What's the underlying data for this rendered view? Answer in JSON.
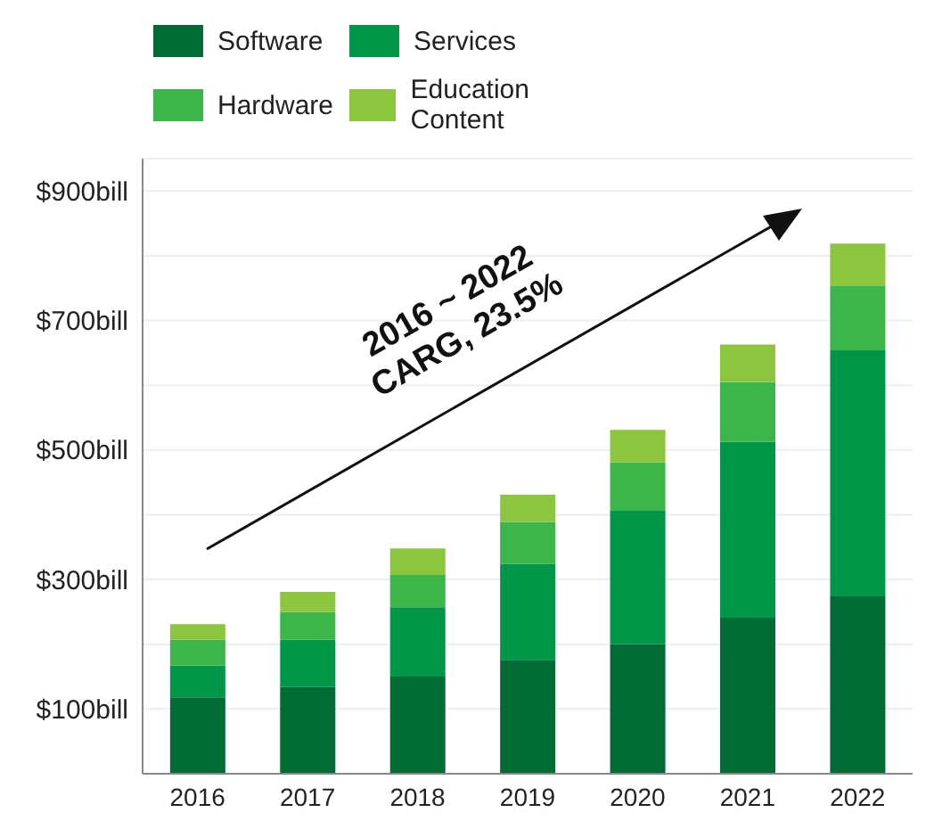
{
  "chart_data": {
    "type": "bar",
    "stacked": true,
    "categories": [
      "2016",
      "2017",
      "2018",
      "2019",
      "2020",
      "2021",
      "2022"
    ],
    "series": [
      {
        "name": "Software",
        "color": "#006b35",
        "values": [
          118,
          134,
          150,
          176,
          200,
          241,
          274
        ]
      },
      {
        "name": "Services",
        "color": "#00964a",
        "values": [
          49,
          73,
          107,
          148,
          206,
          272,
          380
        ]
      },
      {
        "name": "Hardware",
        "color": "#3cb54a",
        "values": [
          40,
          43,
          50,
          65,
          75,
          92,
          100
        ]
      },
      {
        "name": "Education Content",
        "color": "#8cc63f",
        "values": [
          24,
          31,
          41,
          42,
          50,
          58,
          65
        ]
      }
    ],
    "ylim": [
      0,
      950
    ],
    "yticks": [
      {
        "value": 100,
        "label": "$100bill"
      },
      {
        "value": 200,
        "label": null
      },
      {
        "value": 300,
        "label": "$300bill"
      },
      {
        "value": 400,
        "label": null
      },
      {
        "value": 500,
        "label": "$500bill"
      },
      {
        "value": 600,
        "label": null
      },
      {
        "value": 700,
        "label": "$700bill"
      },
      {
        "value": 800,
        "label": null
      },
      {
        "value": 900,
        "label": "$900bill"
      }
    ],
    "grid": "y",
    "legend": "top",
    "annotations": [
      "2016 ~ 2022\nCARG, 23.5%"
    ]
  }
}
